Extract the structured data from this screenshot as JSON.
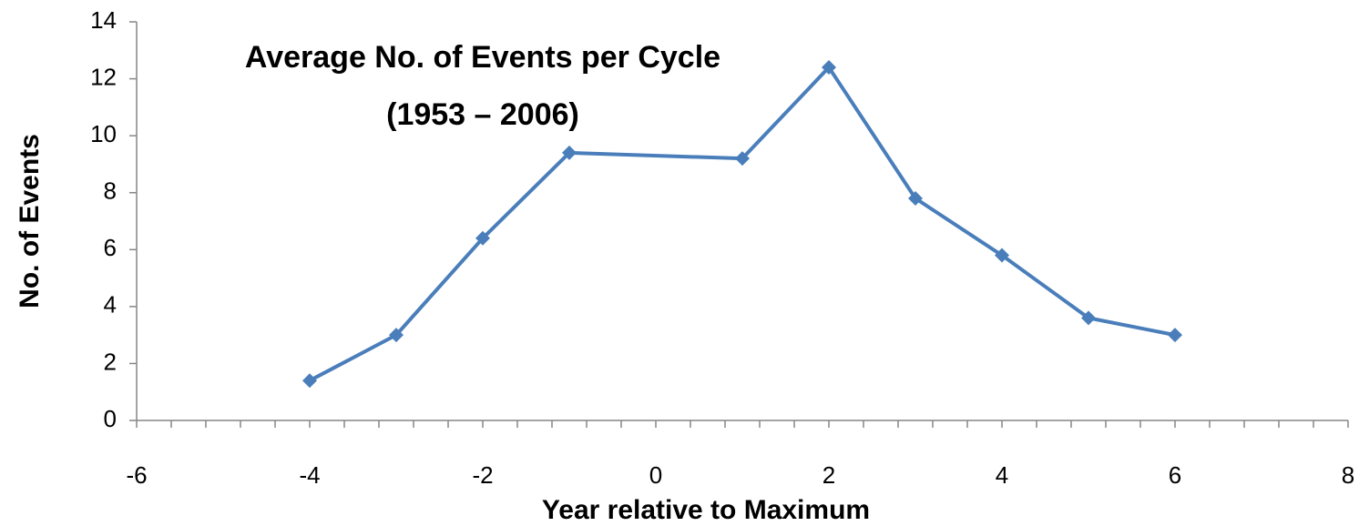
{
  "chart_data": {
    "type": "line",
    "title": "Average No. of Events per Cycle",
    "subtitle": "(1953 – 2006)",
    "x_label": "Year relative to Maximum",
    "y_label": "No. of Events",
    "x": [
      -4,
      -3,
      -2,
      -1,
      1,
      2,
      3,
      4,
      5,
      6
    ],
    "series": [
      {
        "name": "Events",
        "color": "#4a7ebb",
        "values": [
          1.4,
          3.0,
          6.4,
          9.4,
          9.2,
          12.4,
          7.8,
          5.8,
          3.6,
          3.0
        ]
      }
    ],
    "xlim": [
      -6,
      8
    ],
    "xticks": [
      -6,
      -4,
      -2,
      0,
      2,
      4,
      6,
      8
    ],
    "ylim": [
      0,
      14
    ],
    "yticks": [
      0,
      2,
      4,
      6,
      8,
      10,
      12,
      14
    ],
    "grid": false,
    "legend": false
  }
}
